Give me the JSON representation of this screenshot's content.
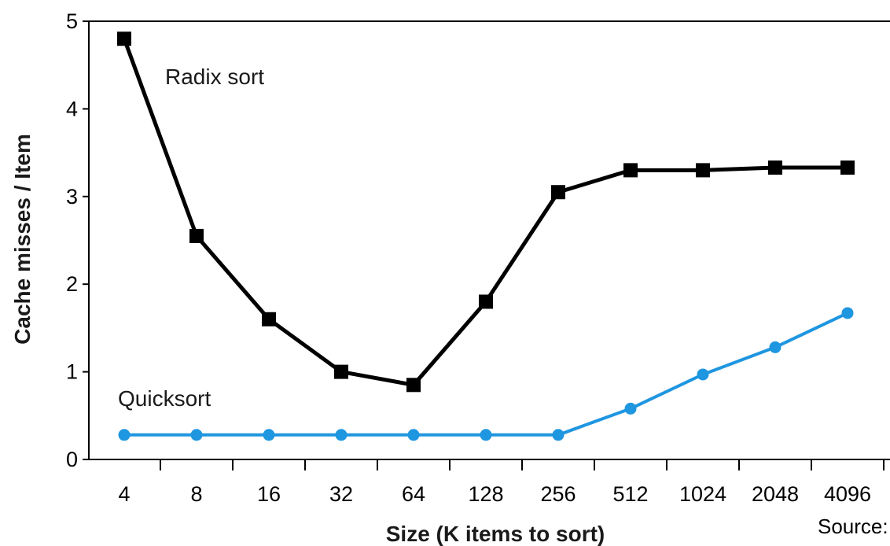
{
  "chart_data": {
    "type": "line",
    "title": "",
    "xlabel": "Size (K items to sort)",
    "ylabel": "Cache misses / Item",
    "categories": [
      "4",
      "8",
      "16",
      "32",
      "64",
      "128",
      "256",
      "512",
      "1024",
      "2048",
      "4096"
    ],
    "yticks": [
      "0",
      "1",
      "2",
      "3",
      "4",
      "5"
    ],
    "ylim": [
      0,
      5
    ],
    "grid": false,
    "series": [
      {
        "name": "Radix sort",
        "color": "#000000",
        "marker": "square",
        "values": [
          4.8,
          2.55,
          1.6,
          1.0,
          0.85,
          1.8,
          3.05,
          3.3,
          3.3,
          3.33,
          3.33
        ]
      },
      {
        "name": "Quicksort",
        "color": "#1f96e0",
        "marker": "circle",
        "values": [
          0.28,
          0.28,
          0.28,
          0.28,
          0.28,
          0.28,
          0.28,
          0.58,
          0.97,
          1.28,
          1.67
        ]
      }
    ],
    "source_note": "Source:"
  }
}
